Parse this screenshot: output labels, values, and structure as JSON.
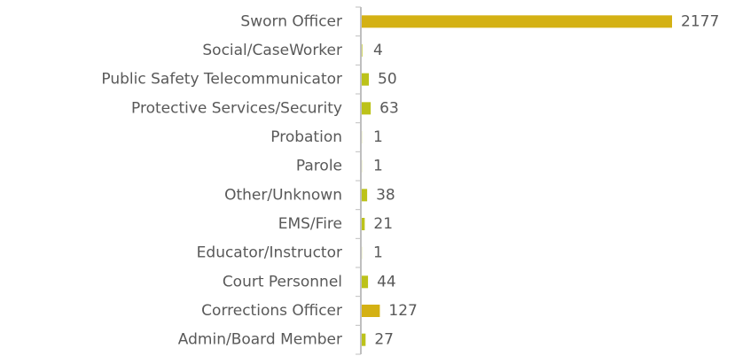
{
  "chart_data": {
    "type": "bar",
    "orientation": "horizontal",
    "categories": [
      "Sworn Officer",
      "Social/CaseWorker",
      "Public Safety Telecommunicator",
      "Protective Services/Security",
      "Probation",
      "Parole",
      "Other/Unknown",
      "EMS/Fire",
      "Educator/Instructor",
      "Court Personnel",
      "Corrections Officer",
      "Admin/Board Member"
    ],
    "values": [
      2177,
      4,
      50,
      63,
      1,
      1,
      38,
      21,
      1,
      44,
      127,
      27
    ],
    "colors": [
      "#d4b114",
      "#bcc21a",
      "#bcc21a",
      "#bcc21a",
      "#bcc21a",
      "#bcc21a",
      "#bcc21a",
      "#bcc21a",
      "#bcc21a",
      "#bcc21a",
      "#d4b114",
      "#bcc21a"
    ]
  }
}
